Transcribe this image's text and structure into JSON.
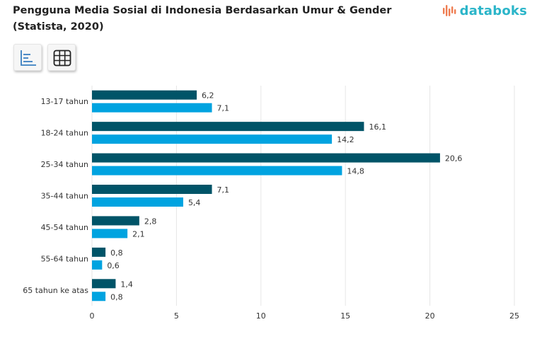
{
  "header": {
    "title_line1": "Pengguna Media Sosial di Indonesia Berdasarkan Umur & Gender",
    "title_line2": "(Statista, 2020)"
  },
  "brand": {
    "logo_text": "databoks",
    "logo_color": "#2bb5c9",
    "logo_mark_color": "#ef7d51"
  },
  "toolbar": {
    "chart_icon": "bar-chart-icon",
    "table_icon": "table-grid-icon"
  },
  "colors": {
    "series_1": "#005468",
    "series_2": "#00a3e0",
    "grid": "#e6e6e6"
  },
  "chart_data": {
    "type": "bar",
    "orientation": "horizontal",
    "title": "Pengguna Media Sosial di Indonesia Berdasarkan Umur & Gender (Statista, 2020)",
    "categories": [
      "13-17 tahun",
      "18-24 tahun",
      "25-34 tahun",
      "35-44 tahun",
      "45-54 tahun",
      "55-64 tahun",
      "65 tahun ke atas"
    ],
    "series": [
      {
        "values": [
          6.2,
          16.1,
          20.6,
          7.1,
          2.8,
          0.8,
          1.4
        ],
        "labels": [
          "6,2",
          "16,1",
          "20,6",
          "7,1",
          "2,8",
          "0,8",
          "1,4"
        ]
      },
      {
        "values": [
          7.1,
          14.2,
          14.8,
          5.4,
          2.1,
          0.6,
          0.8
        ],
        "labels": [
          "7,1",
          "14,2",
          "14,8",
          "5,4",
          "2,1",
          "0,6",
          "0,8"
        ]
      }
    ],
    "xlim": [
      0,
      25
    ],
    "xticks": [
      0,
      5,
      10,
      15,
      20,
      25
    ],
    "xtick_labels": [
      "0",
      "5",
      "10",
      "15",
      "20",
      "25"
    ],
    "xlabel": "",
    "ylabel": "",
    "grid": true,
    "legend": "none"
  }
}
